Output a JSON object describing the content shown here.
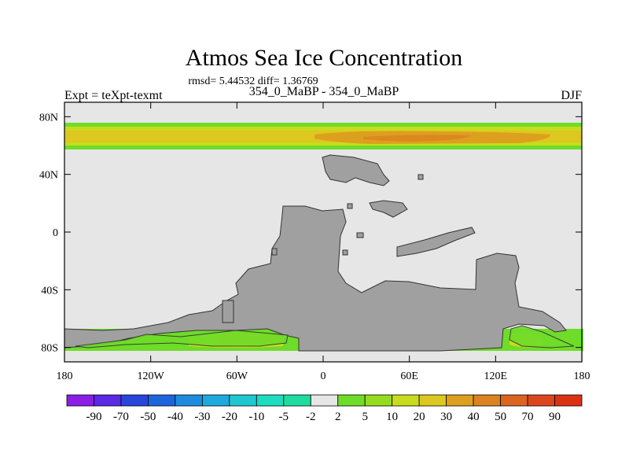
{
  "chart_data": {
    "type": "heatmap",
    "title": "Atmos Sea Ice Concentration",
    "stats_line": "rmsd= 5.44532 diff= 1.36769",
    "subtitle": "354_0_MaBP - 354_0_MaBP",
    "left_label": "Expt = teXpt-texmt",
    "right_label": "DJF",
    "x_ticks": [
      "180",
      "120W",
      "60W",
      "0",
      "60E",
      "120E",
      "180"
    ],
    "x_values": [
      -180,
      -120,
      -60,
      0,
      60,
      120,
      180
    ],
    "y_ticks": [
      "80N",
      "40N",
      "0",
      "40S",
      "80S"
    ],
    "y_values": [
      80,
      40,
      0,
      -40,
      -80
    ],
    "xlim": [
      -180,
      180
    ],
    "ylim": [
      -90,
      90
    ],
    "colorbar": {
      "labels": [
        "-90",
        "-70",
        "-50",
        "-40",
        "-30",
        "-20",
        "-10",
        "-5",
        "-2",
        "2",
        "5",
        "10",
        "20",
        "30",
        "40",
        "50",
        "70",
        "90"
      ],
      "colors": [
        "#8a1ee6",
        "#5a28e6",
        "#2846dc",
        "#1e64dc",
        "#1e8cdc",
        "#1eaadc",
        "#1ec8d2",
        "#1edcbe",
        "#1edca0",
        "#e6e6e6",
        "#6edc28",
        "#96dc1e",
        "#c8dc1e",
        "#dcc81e",
        "#dca01e",
        "#dc821e",
        "#dc641e",
        "#dc461e",
        "#dc3214"
      ]
    },
    "fill_colors": {
      "background": "#e6e6e6",
      "land": "#a0a0a0",
      "low": "#6edc28",
      "mid_low": "#c8dc1e",
      "mid": "#dcc81e",
      "high": "#dca01e",
      "peak": "#dc821e"
    }
  }
}
